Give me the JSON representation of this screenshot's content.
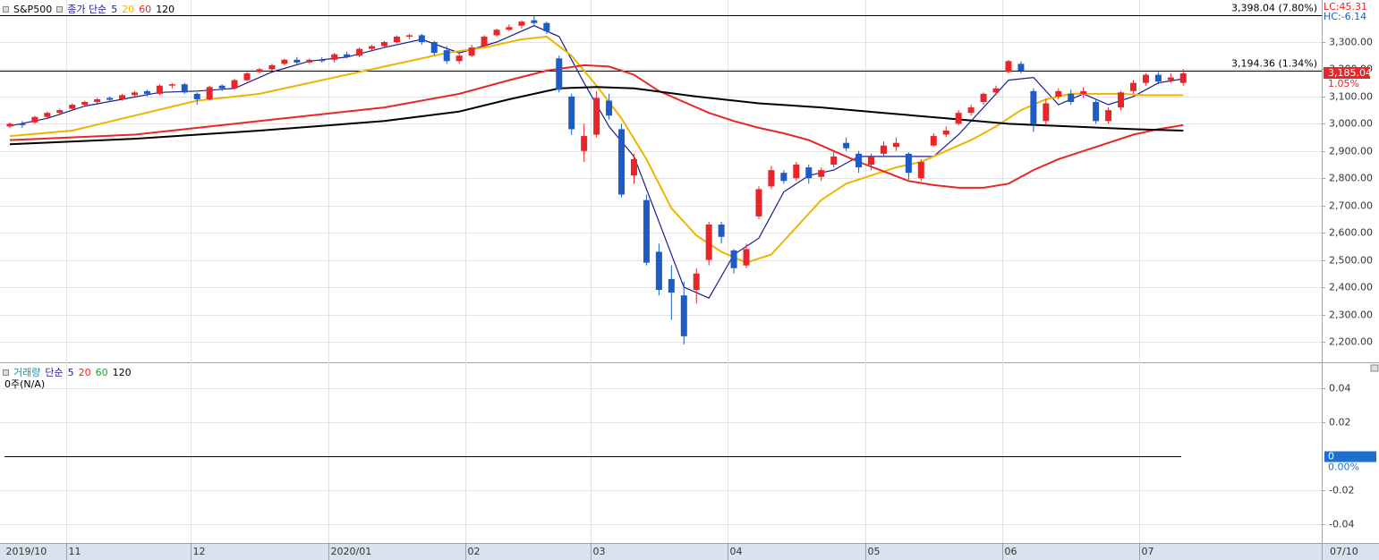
{
  "chart_data": [
    {
      "type": "candlestick",
      "title": "S&P500",
      "ma_label": "종가 단순",
      "categories": [
        "2019/10",
        null,
        null,
        null,
        null,
        "11",
        null,
        null,
        null,
        null,
        null,
        null,
        null,
        null,
        null,
        "12",
        null,
        null,
        null,
        null,
        null,
        null,
        null,
        null,
        null,
        null,
        "2020/01",
        null,
        null,
        null,
        null,
        null,
        null,
        null,
        null,
        null,
        null,
        "02",
        null,
        null,
        null,
        null,
        null,
        null,
        null,
        null,
        null,
        "03",
        null,
        null,
        null,
        null,
        null,
        null,
        null,
        null,
        null,
        null,
        "04",
        null,
        null,
        null,
        null,
        null,
        null,
        null,
        null,
        null,
        null,
        "05",
        null,
        null,
        null,
        null,
        null,
        null,
        null,
        null,
        null,
        null,
        "06",
        null,
        null,
        null,
        null,
        null,
        null,
        null,
        null,
        null,
        null,
        "07",
        null,
        null,
        null
      ],
      "open": [
        2990,
        3000,
        3005,
        3025,
        3040,
        3055,
        3070,
        3080,
        3095,
        3090,
        3105,
        3120,
        3110,
        3140,
        3145,
        3110,
        3090,
        3140,
        3130,
        3160,
        3190,
        3200,
        3220,
        3235,
        3225,
        3235,
        3235,
        3255,
        3250,
        3275,
        3285,
        3300,
        3320,
        3325,
        3300,
        3270,
        3230,
        3250,
        3285,
        3325,
        3345,
        3360,
        3380,
        3370,
        3240,
        3100,
        2900,
        2960,
        3085,
        2980,
        2810,
        2720,
        2530,
        2430,
        2370,
        2390,
        2500,
        2630,
        2535,
        2480,
        2660,
        2770,
        2820,
        2800,
        2840,
        2805,
        2850,
        2930,
        2890,
        2850,
        2890,
        2915,
        2890,
        2800,
        2920,
        2960,
        3000,
        3040,
        3080,
        3115,
        3190,
        3220,
        3120,
        3010,
        3100,
        3110,
        3110,
        3080,
        3010,
        3060,
        3120,
        3150,
        3180,
        3160,
        3150
      ],
      "high": [
        3005,
        3010,
        3030,
        3045,
        3055,
        3075,
        3085,
        3095,
        3100,
        3110,
        3120,
        3125,
        3145,
        3150,
        3150,
        3115,
        3140,
        3145,
        3165,
        3190,
        3205,
        3220,
        3240,
        3245,
        3240,
        3245,
        3260,
        3265,
        3280,
        3290,
        3305,
        3325,
        3330,
        3330,
        3305,
        3285,
        3260,
        3290,
        3325,
        3350,
        3365,
        3380,
        3395,
        3375,
        3250,
        3110,
        3000,
        3120,
        3110,
        3000,
        2890,
        2740,
        2560,
        2480,
        2420,
        2470,
        2640,
        2640,
        2540,
        2560,
        2770,
        2845,
        2830,
        2860,
        2850,
        2840,
        2900,
        2950,
        2900,
        2890,
        2935,
        2950,
        2895,
        2870,
        2965,
        2990,
        3050,
        3070,
        3115,
        3140,
        3235,
        3230,
        3130,
        3090,
        3130,
        3125,
        3135,
        3090,
        3060,
        3120,
        3160,
        3185,
        3190,
        3185,
        3200
      ],
      "low": [
        2985,
        2985,
        3000,
        3020,
        3030,
        3050,
        3065,
        3075,
        3080,
        3085,
        3100,
        3100,
        3105,
        3130,
        3110,
        3070,
        3085,
        3120,
        3125,
        3155,
        3185,
        3195,
        3215,
        3215,
        3220,
        3225,
        3225,
        3240,
        3245,
        3270,
        3280,
        3295,
        3310,
        3290,
        3250,
        3220,
        3220,
        3245,
        3280,
        3320,
        3340,
        3350,
        3360,
        3330,
        3115,
        2960,
        2860,
        2950,
        3015,
        2730,
        2780,
        2480,
        2370,
        2280,
        2190,
        2340,
        2480,
        2560,
        2450,
        2470,
        2650,
        2760,
        2780,
        2790,
        2780,
        2790,
        2840,
        2900,
        2820,
        2830,
        2880,
        2900,
        2795,
        2790,
        2915,
        2950,
        2995,
        3030,
        3070,
        3105,
        3185,
        3185,
        2970,
        2995,
        3090,
        3070,
        3095,
        3000,
        3000,
        3050,
        3110,
        3140,
        3145,
        3150,
        3140
      ],
      "close": [
        3000,
        2995,
        3025,
        3040,
        3050,
        3070,
        3080,
        3090,
        3088,
        3105,
        3115,
        3110,
        3140,
        3145,
        3115,
        3090,
        3135,
        3130,
        3160,
        3185,
        3200,
        3215,
        3235,
        3225,
        3235,
        3230,
        3255,
        3245,
        3275,
        3285,
        3300,
        3320,
        3325,
        3300,
        3260,
        3230,
        3250,
        3280,
        3320,
        3345,
        3355,
        3375,
        3370,
        3340,
        3125,
        2980,
        2955,
        3095,
        3030,
        2740,
        2870,
        2490,
        2390,
        2380,
        2220,
        2450,
        2630,
        2585,
        2470,
        2540,
        2760,
        2830,
        2790,
        2850,
        2800,
        2830,
        2880,
        2910,
        2840,
        2880,
        2920,
        2930,
        2820,
        2860,
        2955,
        2975,
        3040,
        3060,
        3110,
        3130,
        3230,
        3195,
        3000,
        3075,
        3120,
        3080,
        3120,
        3010,
        3050,
        3115,
        3150,
        3180,
        3155,
        3170,
        3185
      ],
      "up_color": "#e8262a",
      "down_color": "#1d5bc6",
      "ylim": [
        2124.3,
        3454.4
      ],
      "yticks": [
        {
          "value": 2200,
          "label": "2,200.00"
        },
        {
          "value": 2300,
          "label": "2,300.00"
        },
        {
          "value": 2400,
          "label": "2,400.00"
        },
        {
          "value": 2500,
          "label": "2,500.00"
        },
        {
          "value": 2600,
          "label": "2,600.00"
        },
        {
          "value": 2700,
          "label": "2,700.00"
        },
        {
          "value": 2800,
          "label": "2,800.00"
        },
        {
          "value": 2900,
          "label": "2,900.00"
        },
        {
          "value": 3000,
          "label": "3,000.00"
        },
        {
          "value": 3100,
          "label": "3,100.00"
        },
        {
          "value": 3200,
          "label": "3,200.00"
        },
        {
          "value": 3300,
          "label": "3,300.00"
        }
      ],
      "grid": true,
      "series": [
        {
          "name": "5",
          "color": "#1c1c8f",
          "x": [
            0,
            3,
            6,
            9,
            12,
            15,
            18,
            21,
            24,
            27,
            30,
            33,
            36,
            39,
            42,
            44,
            46,
            48,
            50,
            52,
            54,
            56,
            58,
            60,
            62,
            64,
            66,
            68,
            70,
            72,
            74,
            76,
            78,
            80,
            82,
            84,
            86,
            88,
            90,
            92,
            94
          ],
          "values": [
            2992,
            3020,
            3065,
            3090,
            3115,
            3120,
            3130,
            3190,
            3230,
            3245,
            3280,
            3310,
            3260,
            3300,
            3360,
            3320,
            3150,
            2990,
            2880,
            2640,
            2400,
            2360,
            2520,
            2580,
            2750,
            2810,
            2830,
            2880,
            2880,
            2880,
            2880,
            2960,
            3060,
            3160,
            3170,
            3070,
            3110,
            3070,
            3100,
            3150,
            3165
          ]
        },
        {
          "name": "20",
          "color": "#f0b400",
          "x": [
            0,
            5,
            10,
            15,
            20,
            25,
            30,
            35,
            38,
            41,
            43,
            45,
            47,
            49,
            51,
            53,
            55,
            57,
            59,
            61,
            63,
            65,
            67,
            69,
            71,
            73,
            75,
            77,
            79,
            81,
            83,
            85,
            87,
            89,
            91,
            94
          ],
          "values": [
            2955,
            2975,
            3030,
            3085,
            3110,
            3160,
            3210,
            3260,
            3280,
            3310,
            3320,
            3250,
            3140,
            3020,
            2870,
            2690,
            2590,
            2530,
            2490,
            2520,
            2620,
            2720,
            2780,
            2810,
            2840,
            2860,
            2900,
            2940,
            2990,
            3050,
            3090,
            3110,
            3110,
            3110,
            3105,
            3105
          ]
        },
        {
          "name": "60",
          "color": "#e8262a",
          "x": [
            0,
            10,
            20,
            30,
            36,
            40,
            43,
            46,
            48,
            50,
            52,
            54,
            56,
            58,
            60,
            62,
            64,
            66,
            68,
            70,
            72,
            74,
            76,
            78,
            80,
            82,
            84,
            86,
            88,
            90,
            92,
            94
          ],
          "values": [
            2940,
            2960,
            3010,
            3060,
            3110,
            3160,
            3195,
            3215,
            3210,
            3180,
            3120,
            3080,
            3040,
            3010,
            2985,
            2965,
            2940,
            2900,
            2860,
            2825,
            2790,
            2775,
            2765,
            2765,
            2780,
            2830,
            2870,
            2900,
            2930,
            2960,
            2980,
            2995
          ]
        },
        {
          "name": "120",
          "color": "#000000",
          "x": [
            0,
            10,
            20,
            30,
            36,
            40,
            44,
            47,
            50,
            55,
            60,
            65,
            70,
            75,
            80,
            85,
            90,
            94
          ],
          "values": [
            2925,
            2945,
            2975,
            3010,
            3045,
            3090,
            3130,
            3135,
            3130,
            3100,
            3075,
            3060,
            3040,
            3020,
            3000,
            2990,
            2980,
            2975
          ]
        }
      ],
      "reference_lines": [
        {
          "value": 3398.04,
          "label": "3,398.04 (7.80%)"
        },
        {
          "value": 3194.36,
          "label": "3,194.36 (1.34%)"
        }
      ],
      "last_price": {
        "value": 3185.04,
        "label": "3,185.04",
        "change": "1.05%"
      },
      "lc": "LC:45.31",
      "hc": "HC:-6.14",
      "end_date": "07/10"
    },
    {
      "type": "volume",
      "title": "거래량",
      "ma_label": "단순",
      "series": [
        {
          "name": "5",
          "color": "#1c1c8f"
        },
        {
          "name": "20",
          "color": "#e8262a"
        },
        {
          "name": "60",
          "color": "#1e9e3e"
        },
        {
          "name": "120",
          "color": "#000000"
        }
      ],
      "note": "0주(N/A)",
      "ylim": [
        -0.051,
        0.0553
      ],
      "yticks": [
        0.04,
        0.02,
        0,
        -0.02,
        -0.04
      ],
      "zero_label": "0.00%"
    }
  ]
}
